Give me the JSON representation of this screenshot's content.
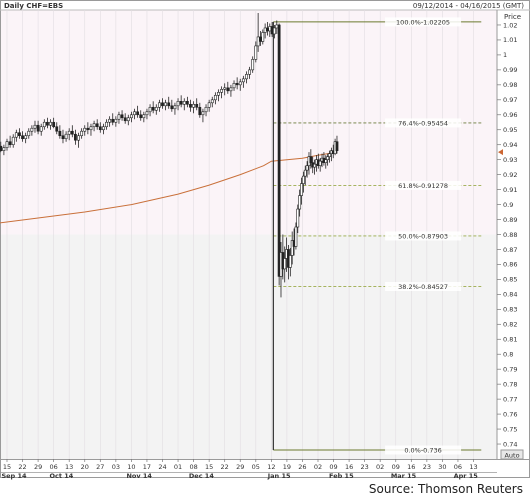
{
  "chart_data": {
    "type": "candlestick",
    "title": "Daily CHF=EBS",
    "date_range": "09/12/2014 - 04/16/2015 (GMT)",
    "ylabel": "Price",
    "ylim": [
      0.73,
      1.03
    ],
    "y_ticks": [
      0.74,
      0.75,
      0.76,
      0.77,
      0.78,
      0.79,
      0.8,
      0.81,
      0.82,
      0.83,
      0.84,
      0.85,
      0.86,
      0.87,
      0.88,
      0.89,
      0.9,
      0.91,
      0.92,
      0.93,
      0.94,
      0.95,
      0.96,
      0.97,
      0.98,
      0.99,
      1,
      1.01,
      1.02
    ],
    "y_tick_labels": [
      "0.74",
      "0.75",
      "0.76",
      "0.77",
      "0.78",
      "0.79",
      "0.8",
      "0.81",
      "0.82",
      "0.83",
      "0.84",
      "0.85",
      "0.86",
      "0.87",
      "0.88",
      "0.89",
      "0.9",
      "0.91",
      "0.92",
      "0.93",
      "0.94",
      "0.95",
      "0.96",
      "0.97",
      "0.98",
      "0.99",
      "1",
      "1.01",
      "1.02"
    ],
    "x_day_labels": [
      "15",
      "22",
      "29",
      "06",
      "13",
      "20",
      "27",
      "03",
      "10",
      "17",
      "24",
      "01",
      "08",
      "15",
      "22",
      "29",
      "05",
      "12",
      "19",
      "26",
      "02",
      "09",
      "16",
      "23",
      "02",
      "09",
      "16",
      "23",
      "30",
      "06",
      "13"
    ],
    "x_month_labels": [
      {
        "label": "Sep 14",
        "index": 0
      },
      {
        "label": "Oct 14",
        "index": 3.5
      },
      {
        "label": "Nov 14",
        "index": 8.5
      },
      {
        "label": "Dec 14",
        "index": 12.5
      },
      {
        "label": "Jan 15",
        "index": 17.5
      },
      {
        "label": "Feb 15",
        "index": 21.5
      },
      {
        "label": "Mar 15",
        "index": 25.5
      },
      {
        "label": "Apr 15",
        "index": 29.5
      }
    ],
    "auto_label": "Auto",
    "fib_levels": [
      {
        "label": "100.0%-1.02205",
        "value": 1.02205
      },
      {
        "label": "76.4%-0.95454",
        "value": 0.95454
      },
      {
        "label": "61.8%-0.91278",
        "value": 0.91278
      },
      {
        "label": "50.0%-0.87903",
        "value": 0.87903
      },
      {
        "label": "38.2%-0.84527",
        "value": 0.84527
      },
      {
        "label": "0.0%-0.736",
        "value": 0.736
      }
    ],
    "fib_start_index": 17,
    "fib_end_index": 30.5,
    "last_price_marker": 0.935,
    "moving_average": [
      {
        "x": -1,
        "y": 0.887
      },
      {
        "x": 2,
        "y": 0.891
      },
      {
        "x": 5,
        "y": 0.895
      },
      {
        "x": 8,
        "y": 0.9
      },
      {
        "x": 11,
        "y": 0.907
      },
      {
        "x": 13,
        "y": 0.913
      },
      {
        "x": 15,
        "y": 0.92
      },
      {
        "x": 16.5,
        "y": 0.926
      },
      {
        "x": 17,
        "y": 0.929
      },
      {
        "x": 18,
        "y": 0.93
      },
      {
        "x": 19,
        "y": 0.931
      },
      {
        "x": 20,
        "y": 0.933
      },
      {
        "x": 21.2,
        "y": 0.935
      }
    ],
    "candles": [
      {
        "x": -1.0,
        "o": 0.932,
        "h": 0.938,
        "l": 0.93,
        "c": 0.935
      },
      {
        "x": -0.8,
        "o": 0.935,
        "h": 0.939,
        "l": 0.931,
        "c": 0.934
      },
      {
        "x": -0.6,
        "o": 0.934,
        "h": 0.941,
        "l": 0.932,
        "c": 0.939
      },
      {
        "x": -0.4,
        "o": 0.939,
        "h": 0.942,
        "l": 0.935,
        "c": 0.936
      },
      {
        "x": -0.2,
        "o": 0.936,
        "h": 0.94,
        "l": 0.933,
        "c": 0.938
      },
      {
        "x": 0.0,
        "o": 0.938,
        "h": 0.944,
        "l": 0.936,
        "c": 0.942
      },
      {
        "x": 0.2,
        "o": 0.942,
        "h": 0.946,
        "l": 0.938,
        "c": 0.94
      },
      {
        "x": 0.4,
        "o": 0.94,
        "h": 0.947,
        "l": 0.938,
        "c": 0.945
      },
      {
        "x": 0.6,
        "o": 0.945,
        "h": 0.95,
        "l": 0.942,
        "c": 0.948
      },
      {
        "x": 0.8,
        "o": 0.948,
        "h": 0.951,
        "l": 0.944,
        "c": 0.946
      },
      {
        "x": 1.0,
        "o": 0.946,
        "h": 0.949,
        "l": 0.942,
        "c": 0.944
      },
      {
        "x": 1.2,
        "o": 0.944,
        "h": 0.948,
        "l": 0.941,
        "c": 0.946
      },
      {
        "x": 1.4,
        "o": 0.946,
        "h": 0.951,
        "l": 0.944,
        "c": 0.949
      },
      {
        "x": 1.6,
        "o": 0.949,
        "h": 0.953,
        "l": 0.946,
        "c": 0.951
      },
      {
        "x": 1.8,
        "o": 0.951,
        "h": 0.956,
        "l": 0.948,
        "c": 0.953
      },
      {
        "x": 2.0,
        "o": 0.953,
        "h": 0.956,
        "l": 0.947,
        "c": 0.949
      },
      {
        "x": 2.2,
        "o": 0.949,
        "h": 0.954,
        "l": 0.946,
        "c": 0.952
      },
      {
        "x": 2.4,
        "o": 0.952,
        "h": 0.957,
        "l": 0.95,
        "c": 0.955
      },
      {
        "x": 2.6,
        "o": 0.955,
        "h": 0.958,
        "l": 0.951,
        "c": 0.953
      },
      {
        "x": 2.8,
        "o": 0.953,
        "h": 0.957,
        "l": 0.95,
        "c": 0.955
      },
      {
        "x": 3.0,
        "o": 0.955,
        "h": 0.958,
        "l": 0.951,
        "c": 0.952
      },
      {
        "x": 3.2,
        "o": 0.952,
        "h": 0.955,
        "l": 0.947,
        "c": 0.949
      },
      {
        "x": 3.4,
        "o": 0.949,
        "h": 0.953,
        "l": 0.944,
        "c": 0.946
      },
      {
        "x": 3.6,
        "o": 0.946,
        "h": 0.95,
        "l": 0.941,
        "c": 0.944
      },
      {
        "x": 3.8,
        "o": 0.944,
        "h": 0.949,
        "l": 0.942,
        "c": 0.947
      },
      {
        "x": 4.0,
        "o": 0.947,
        "h": 0.951,
        "l": 0.943,
        "c": 0.949
      },
      {
        "x": 4.2,
        "o": 0.949,
        "h": 0.953,
        "l": 0.945,
        "c": 0.947
      },
      {
        "x": 4.4,
        "o": 0.947,
        "h": 0.95,
        "l": 0.94,
        "c": 0.943
      },
      {
        "x": 4.6,
        "o": 0.943,
        "h": 0.948,
        "l": 0.938,
        "c": 0.946
      },
      {
        "x": 4.8,
        "o": 0.946,
        "h": 0.951,
        "l": 0.944,
        "c": 0.949
      },
      {
        "x": 5.0,
        "o": 0.949,
        "h": 0.953,
        "l": 0.946,
        "c": 0.951
      },
      {
        "x": 5.2,
        "o": 0.951,
        "h": 0.955,
        "l": 0.947,
        "c": 0.95
      },
      {
        "x": 5.4,
        "o": 0.95,
        "h": 0.954,
        "l": 0.946,
        "c": 0.952
      },
      {
        "x": 5.6,
        "o": 0.952,
        "h": 0.956,
        "l": 0.949,
        "c": 0.954
      },
      {
        "x": 5.8,
        "o": 0.954,
        "h": 0.957,
        "l": 0.95,
        "c": 0.952
      },
      {
        "x": 6.0,
        "o": 0.952,
        "h": 0.955,
        "l": 0.948,
        "c": 0.95
      },
      {
        "x": 6.2,
        "o": 0.95,
        "h": 0.954,
        "l": 0.947,
        "c": 0.952
      },
      {
        "x": 6.4,
        "o": 0.952,
        "h": 0.957,
        "l": 0.95,
        "c": 0.955
      },
      {
        "x": 6.6,
        "o": 0.955,
        "h": 0.959,
        "l": 0.952,
        "c": 0.957
      },
      {
        "x": 6.8,
        "o": 0.957,
        "h": 0.961,
        "l": 0.953,
        "c": 0.955
      },
      {
        "x": 7.0,
        "o": 0.955,
        "h": 0.959,
        "l": 0.952,
        "c": 0.957
      },
      {
        "x": 7.2,
        "o": 0.957,
        "h": 0.962,
        "l": 0.954,
        "c": 0.96
      },
      {
        "x": 7.4,
        "o": 0.96,
        "h": 0.963,
        "l": 0.956,
        "c": 0.958
      },
      {
        "x": 7.6,
        "o": 0.958,
        "h": 0.961,
        "l": 0.954,
        "c": 0.956
      },
      {
        "x": 7.8,
        "o": 0.956,
        "h": 0.96,
        "l": 0.953,
        "c": 0.958
      },
      {
        "x": 8.0,
        "o": 0.958,
        "h": 0.962,
        "l": 0.955,
        "c": 0.96
      },
      {
        "x": 8.2,
        "o": 0.96,
        "h": 0.964,
        "l": 0.957,
        "c": 0.962
      },
      {
        "x": 8.4,
        "o": 0.962,
        "h": 0.966,
        "l": 0.958,
        "c": 0.96
      },
      {
        "x": 8.6,
        "o": 0.96,
        "h": 0.963,
        "l": 0.956,
        "c": 0.958
      },
      {
        "x": 8.8,
        "o": 0.958,
        "h": 0.962,
        "l": 0.955,
        "c": 0.96
      },
      {
        "x": 9.0,
        "o": 0.96,
        "h": 0.964,
        "l": 0.957,
        "c": 0.962
      },
      {
        "x": 9.2,
        "o": 0.962,
        "h": 0.967,
        "l": 0.959,
        "c": 0.965
      },
      {
        "x": 9.4,
        "o": 0.965,
        "h": 0.969,
        "l": 0.961,
        "c": 0.963
      },
      {
        "x": 9.6,
        "o": 0.963,
        "h": 0.967,
        "l": 0.96,
        "c": 0.965
      },
      {
        "x": 9.8,
        "o": 0.965,
        "h": 0.97,
        "l": 0.962,
        "c": 0.968
      },
      {
        "x": 10.0,
        "o": 0.968,
        "h": 0.971,
        "l": 0.964,
        "c": 0.966
      },
      {
        "x": 10.2,
        "o": 0.966,
        "h": 0.97,
        "l": 0.963,
        "c": 0.968
      },
      {
        "x": 10.4,
        "o": 0.968,
        "h": 0.972,
        "l": 0.964,
        "c": 0.966
      },
      {
        "x": 10.6,
        "o": 0.966,
        "h": 0.97,
        "l": 0.962,
        "c": 0.964
      },
      {
        "x": 10.8,
        "o": 0.964,
        "h": 0.968,
        "l": 0.96,
        "c": 0.966
      },
      {
        "x": 11.0,
        "o": 0.966,
        "h": 0.971,
        "l": 0.963,
        "c": 0.969
      },
      {
        "x": 11.2,
        "o": 0.969,
        "h": 0.973,
        "l": 0.965,
        "c": 0.967
      },
      {
        "x": 11.4,
        "o": 0.967,
        "h": 0.971,
        "l": 0.963,
        "c": 0.969
      },
      {
        "x": 11.6,
        "o": 0.969,
        "h": 0.972,
        "l": 0.965,
        "c": 0.967
      },
      {
        "x": 11.8,
        "o": 0.967,
        "h": 0.97,
        "l": 0.962,
        "c": 0.965
      },
      {
        "x": 12.0,
        "o": 0.965,
        "h": 0.969,
        "l": 0.961,
        "c": 0.967
      },
      {
        "x": 12.2,
        "o": 0.967,
        "h": 0.971,
        "l": 0.963,
        "c": 0.965
      },
      {
        "x": 12.4,
        "o": 0.965,
        "h": 0.968,
        "l": 0.958,
        "c": 0.96
      },
      {
        "x": 12.6,
        "o": 0.96,
        "h": 0.964,
        "l": 0.955,
        "c": 0.962
      },
      {
        "x": 12.8,
        "o": 0.962,
        "h": 0.967,
        "l": 0.959,
        "c": 0.965
      },
      {
        "x": 13.0,
        "o": 0.965,
        "h": 0.97,
        "l": 0.962,
        "c": 0.968
      },
      {
        "x": 13.2,
        "o": 0.968,
        "h": 0.972,
        "l": 0.965,
        "c": 0.97
      },
      {
        "x": 13.4,
        "o": 0.97,
        "h": 0.975,
        "l": 0.967,
        "c": 0.973
      },
      {
        "x": 13.6,
        "o": 0.973,
        "h": 0.977,
        "l": 0.969,
        "c": 0.975
      },
      {
        "x": 13.8,
        "o": 0.975,
        "h": 0.979,
        "l": 0.971,
        "c": 0.977
      },
      {
        "x": 14.0,
        "o": 0.977,
        "h": 0.981,
        "l": 0.973,
        "c": 0.978
      },
      {
        "x": 14.2,
        "o": 0.978,
        "h": 0.982,
        "l": 0.974,
        "c": 0.976
      },
      {
        "x": 14.4,
        "o": 0.976,
        "h": 0.98,
        "l": 0.972,
        "c": 0.978
      },
      {
        "x": 14.6,
        "o": 0.978,
        "h": 0.983,
        "l": 0.976,
        "c": 0.981
      },
      {
        "x": 14.8,
        "o": 0.981,
        "h": 0.985,
        "l": 0.977,
        "c": 0.98
      },
      {
        "x": 15.0,
        "o": 0.98,
        "h": 0.984,
        "l": 0.976,
        "c": 0.982
      },
      {
        "x": 15.2,
        "o": 0.982,
        "h": 0.986,
        "l": 0.978,
        "c": 0.984
      },
      {
        "x": 15.4,
        "o": 0.984,
        "h": 0.989,
        "l": 0.981,
        "c": 0.987
      },
      {
        "x": 15.6,
        "o": 0.987,
        "h": 0.992,
        "l": 0.984,
        "c": 0.99
      },
      {
        "x": 15.8,
        "o": 0.99,
        "h": 0.999,
        "l": 0.988,
        "c": 0.997
      },
      {
        "x": 16.0,
        "o": 0.997,
        "h": 1.009,
        "l": 0.995,
        "c": 1.006
      },
      {
        "x": 16.15,
        "o": 1.006,
        "h": 1.028,
        "l": 1.002,
        "c": 1.012
      },
      {
        "x": 16.3,
        "o": 1.012,
        "h": 1.016,
        "l": 1.006,
        "c": 1.009
      },
      {
        "x": 16.45,
        "o": 1.009,
        "h": 1.017,
        "l": 1.007,
        "c": 1.015
      },
      {
        "x": 16.6,
        "o": 1.015,
        "h": 1.021,
        "l": 1.011,
        "c": 1.018
      },
      {
        "x": 16.75,
        "o": 1.018,
        "h": 1.022,
        "l": 1.013,
        "c": 1.016
      },
      {
        "x": 16.9,
        "o": 1.016,
        "h": 1.021,
        "l": 1.012,
        "c": 1.019
      },
      {
        "x": 17.05,
        "o": 1.019,
        "h": 1.022,
        "l": 1.012,
        "c": 1.014
      },
      {
        "x": 17.2,
        "o": 1.014,
        "h": 1.02,
        "l": 1.011,
        "c": 1.018
      },
      {
        "x": 17.35,
        "o": 1.018,
        "h": 1.023,
        "l": 1.014,
        "c": 1.02
      },
      {
        "x": 17.5,
        "o": 1.02,
        "h": 1.021,
        "l": 0.846,
        "c": 0.852
      },
      {
        "x": 17.62,
        "o": 0.852,
        "h": 0.875,
        "l": 0.838,
        "c": 0.868
      },
      {
        "x": 17.74,
        "o": 0.868,
        "h": 0.88,
        "l": 0.85,
        "c": 0.857
      },
      {
        "x": 17.86,
        "o": 0.857,
        "h": 0.872,
        "l": 0.848,
        "c": 0.864
      },
      {
        "x": 17.98,
        "o": 0.864,
        "h": 0.878,
        "l": 0.855,
        "c": 0.87
      },
      {
        "x": 18.1,
        "o": 0.87,
        "h": 0.873,
        "l": 0.85,
        "c": 0.858
      },
      {
        "x": 18.22,
        "o": 0.858,
        "h": 0.871,
        "l": 0.852,
        "c": 0.866
      },
      {
        "x": 18.34,
        "o": 0.866,
        "h": 0.882,
        "l": 0.86,
        "c": 0.876
      },
      {
        "x": 18.46,
        "o": 0.876,
        "h": 0.884,
        "l": 0.866,
        "c": 0.872
      },
      {
        "x": 18.58,
        "o": 0.872,
        "h": 0.888,
        "l": 0.87,
        "c": 0.885
      },
      {
        "x": 18.7,
        "o": 0.885,
        "h": 0.9,
        "l": 0.881,
        "c": 0.897
      },
      {
        "x": 18.82,
        "o": 0.897,
        "h": 0.91,
        "l": 0.892,
        "c": 0.906
      },
      {
        "x": 18.94,
        "o": 0.906,
        "h": 0.918,
        "l": 0.9,
        "c": 0.914
      },
      {
        "x": 19.06,
        "o": 0.914,
        "h": 0.922,
        "l": 0.908,
        "c": 0.919
      },
      {
        "x": 19.18,
        "o": 0.919,
        "h": 0.926,
        "l": 0.913,
        "c": 0.923
      },
      {
        "x": 19.3,
        "o": 0.923,
        "h": 0.929,
        "l": 0.918,
        "c": 0.926
      },
      {
        "x": 19.42,
        "o": 0.926,
        "h": 0.935,
        "l": 0.92,
        "c": 0.932
      },
      {
        "x": 19.54,
        "o": 0.932,
        "h": 0.937,
        "l": 0.924,
        "c": 0.928
      },
      {
        "x": 19.66,
        "o": 0.928,
        "h": 0.932,
        "l": 0.921,
        "c": 0.925
      },
      {
        "x": 19.78,
        "o": 0.925,
        "h": 0.93,
        "l": 0.92,
        "c": 0.927
      },
      {
        "x": 19.9,
        "o": 0.927,
        "h": 0.933,
        "l": 0.922,
        "c": 0.93
      },
      {
        "x": 20.02,
        "o": 0.93,
        "h": 0.934,
        "l": 0.924,
        "c": 0.926
      },
      {
        "x": 20.14,
        "o": 0.926,
        "h": 0.931,
        "l": 0.922,
        "c": 0.929
      },
      {
        "x": 20.26,
        "o": 0.929,
        "h": 0.934,
        "l": 0.925,
        "c": 0.931
      },
      {
        "x": 20.38,
        "o": 0.931,
        "h": 0.935,
        "l": 0.926,
        "c": 0.928
      },
      {
        "x": 20.5,
        "o": 0.928,
        "h": 0.933,
        "l": 0.924,
        "c": 0.93
      },
      {
        "x": 20.62,
        "o": 0.93,
        "h": 0.934,
        "l": 0.926,
        "c": 0.932
      },
      {
        "x": 20.74,
        "o": 0.932,
        "h": 0.936,
        "l": 0.928,
        "c": 0.934
      },
      {
        "x": 20.86,
        "o": 0.934,
        "h": 0.938,
        "l": 0.929,
        "c": 0.936
      },
      {
        "x": 20.98,
        "o": 0.936,
        "h": 0.94,
        "l": 0.931,
        "c": 0.934
      },
      {
        "x": 21.1,
        "o": 0.934,
        "h": 0.944,
        "l": 0.933,
        "c": 0.942
      },
      {
        "x": 21.22,
        "o": 0.942,
        "h": 0.946,
        "l": 0.934,
        "c": 0.936
      }
    ]
  },
  "footer": {
    "source": "Source: Thomson Reuters"
  }
}
